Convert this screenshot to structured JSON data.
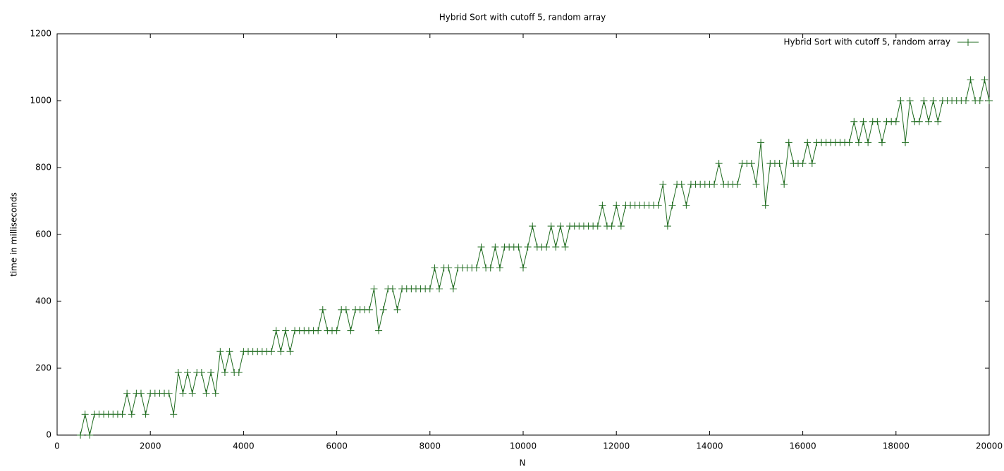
{
  "chart_data": {
    "type": "line",
    "title": "Hybrid Sort with cutoff 5, random array",
    "xlabel": "N",
    "ylabel": "time in milliseconds",
    "x": [
      500,
      600,
      700,
      800,
      900,
      1000,
      1100,
      1200,
      1300,
      1400,
      1500,
      1600,
      1700,
      1800,
      1900,
      2000,
      2100,
      2200,
      2300,
      2400,
      2500,
      2600,
      2700,
      2800,
      2900,
      3000,
      3100,
      3200,
      3300,
      3400,
      3500,
      3600,
      3700,
      3800,
      3900,
      4000,
      4100,
      4200,
      4300,
      4400,
      4500,
      4600,
      4700,
      4800,
      4900,
      5000,
      5100,
      5200,
      5300,
      5400,
      5500,
      5600,
      5700,
      5800,
      5900,
      6000,
      6100,
      6200,
      6300,
      6400,
      6500,
      6600,
      6700,
      6800,
      6900,
      7000,
      7100,
      7200,
      7300,
      7400,
      7500,
      7600,
      7700,
      7800,
      7900,
      8000,
      8100,
      8200,
      8300,
      8400,
      8500,
      8600,
      8700,
      8800,
      8900,
      9000,
      9100,
      9200,
      9300,
      9400,
      9500,
      9600,
      9700,
      9800,
      9900,
      10000,
      10100,
      10200,
      10300,
      10400,
      10500,
      10600,
      10700,
      10800,
      10900,
      11000,
      11100,
      11200,
      11300,
      11400,
      11500,
      11600,
      11700,
      11800,
      11900,
      12000,
      12100,
      12200,
      12300,
      12400,
      12500,
      12600,
      12700,
      12800,
      12900,
      13000,
      13100,
      13200,
      13300,
      13400,
      13500,
      13600,
      13700,
      13800,
      13900,
      14000,
      14100,
      14200,
      14300,
      14400,
      14500,
      14600,
      14700,
      14800,
      14900,
      15000,
      15100,
      15200,
      15300,
      15400,
      15500,
      15600,
      15700,
      15800,
      15900,
      16000,
      16100,
      16200,
      16300,
      16400,
      16500,
      16600,
      16700,
      16800,
      16900,
      17000,
      17100,
      17200,
      17300,
      17400,
      17500,
      17600,
      17700,
      17800,
      17900,
      18000,
      18100,
      18200,
      18300,
      18400,
      18500,
      18600,
      18700,
      18800,
      18900,
      19000,
      19100,
      19200,
      19300,
      19400,
      19500,
      19600,
      19700,
      19800,
      19900,
      20000
    ],
    "series": [
      {
        "name": "Hybrid Sort with cutoff 5, random array",
        "color": "#1f6b1f",
        "values": [
          0,
          62.5,
          0,
          62.5,
          62.5,
          62.5,
          62.5,
          62.5,
          62.5,
          62.5,
          125,
          62.5,
          125,
          125,
          62.5,
          125,
          125,
          125,
          125,
          125,
          62.5,
          187.5,
          125,
          187.5,
          125,
          187.5,
          187.5,
          125,
          187.5,
          125,
          250,
          187.5,
          250,
          187.5,
          187.5,
          250,
          250,
          250,
          250,
          250,
          250,
          250,
          312.5,
          250,
          312.5,
          250,
          312.5,
          312.5,
          312.5,
          312.5,
          312.5,
          312.5,
          375,
          312.5,
          312.5,
          312.5,
          375,
          375,
          312.5,
          375,
          375,
          375,
          375,
          437.5,
          312.5,
          375,
          437.5,
          437.5,
          375,
          437.5,
          437.5,
          437.5,
          437.5,
          437.5,
          437.5,
          437.5,
          500,
          437.5,
          500,
          500,
          437.5,
          500,
          500,
          500,
          500,
          500,
          562.5,
          500,
          500,
          562.5,
          500,
          562.5,
          562.5,
          562.5,
          562.5,
          500,
          562.5,
          625,
          562.5,
          562.5,
          562.5,
          625,
          562.5,
          625,
          562.5,
          625,
          625,
          625,
          625,
          625,
          625,
          625,
          687.5,
          625,
          625,
          687.5,
          625,
          687.5,
          687.5,
          687.5,
          687.5,
          687.5,
          687.5,
          687.5,
          687.5,
          750,
          625,
          687.5,
          750,
          750,
          687.5,
          750,
          750,
          750,
          750,
          750,
          750,
          812.5,
          750,
          750,
          750,
          750,
          812.5,
          812.5,
          812.5,
          750,
          875,
          687.5,
          812.5,
          812.5,
          812.5,
          750,
          875,
          812.5,
          812.5,
          812.5,
          875,
          812.5,
          875,
          875,
          875,
          875,
          875,
          875,
          875,
          875,
          937.5,
          875,
          937.5,
          875,
          937.5,
          937.5,
          875,
          937.5,
          937.5,
          937.5,
          1000,
          875,
          1000,
          937.5,
          937.5,
          1000,
          937.5,
          1000,
          937.5,
          1000,
          1000,
          1000,
          1000,
          1000,
          1000,
          1062.5,
          1000,
          1000,
          1062.5,
          1000
        ]
      }
    ],
    "xlim": [
      0,
      20000
    ],
    "ylim": [
      0,
      1200
    ],
    "xticks": [
      0,
      2000,
      4000,
      6000,
      8000,
      10000,
      12000,
      14000,
      16000,
      18000,
      20000
    ],
    "yticks": [
      0,
      200,
      400,
      600,
      800,
      1000,
      1200
    ],
    "legend": "top-right",
    "grid": false
  }
}
